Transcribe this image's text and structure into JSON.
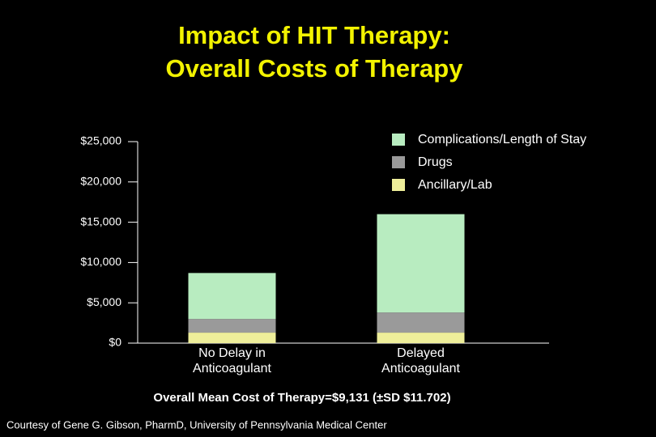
{
  "chart_data": {
    "type": "stacked_bar",
    "title": "Impact of HIT Therapy:",
    "subtitle": "Overall Costs of Therapy",
    "categories": [
      "No Delay in Anticoagulant",
      "Delayed Anticoagulant"
    ],
    "series": [
      {
        "name": "Ancillary/Lab",
        "color": "#eeee9a",
        "values": [
          1300,
          1300
        ]
      },
      {
        "name": "Drugs",
        "color": "#9a9a9a",
        "values": [
          1700,
          2500
        ]
      },
      {
        "name": "Complications/Length of Stay",
        "color": "#b8ecc0",
        "values": [
          5700,
          12200
        ]
      }
    ],
    "ylim": [
      0,
      25000
    ],
    "yticks": [
      {
        "value": 0,
        "label": "$0"
      },
      {
        "value": 5000,
        "label": "$5,000"
      },
      {
        "value": 10000,
        "label": "$10,000"
      },
      {
        "value": 15000,
        "label": "$15,000"
      },
      {
        "value": 20000,
        "label": "$20,000"
      },
      {
        "value": 25000,
        "label": "$25,000"
      }
    ],
    "legend_position": "top-right",
    "annotation": "Overall Mean Cost of Therapy=$9,131 (±SD $11.702)",
    "footnote": "Courtesy of Gene G. Gibson, PharmD, University of Pennsylvania Medical Center"
  }
}
